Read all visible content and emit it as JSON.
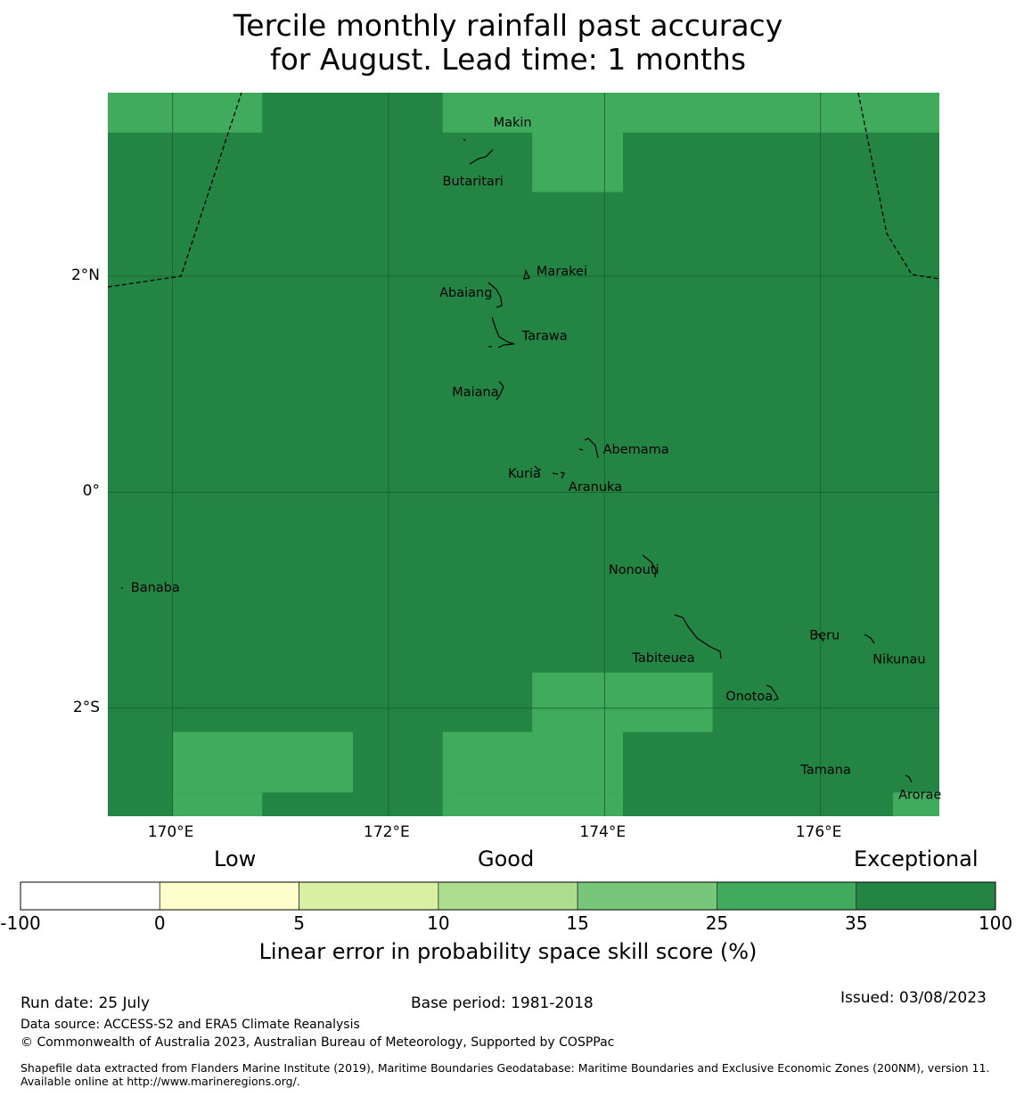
{
  "title": {
    "line1": "Tercile monthly rainfall past accuracy",
    "line2": "for August. Lead time: 1 months"
  },
  "map": {
    "lon_range": [
      169.4,
      177.1
    ],
    "lat_range": [
      -3.0,
      3.7
    ],
    "grid_cell_deg": 0.833,
    "colors": {
      "exceptional": "#238443",
      "good_high": "#41ab5d"
    },
    "lighter_cells": [
      {
        "lon": [
          169.4,
          170.83
        ],
        "lat": [
          3.33,
          3.7
        ]
      },
      {
        "lon": [
          172.5,
          177.1
        ],
        "lat": [
          3.33,
          3.7
        ]
      },
      {
        "lon": [
          173.33,
          174.17
        ],
        "lat": [
          2.78,
          3.33
        ]
      },
      {
        "lon": [
          173.33,
          175.0
        ],
        "lat": [
          -2.22,
          -1.67
        ]
      },
      {
        "lon": [
          172.5,
          174.17
        ],
        "lat": [
          -2.78,
          -2.22
        ]
      },
      {
        "lon": [
          170.0,
          171.67
        ],
        "lat": [
          -2.78,
          -2.22
        ]
      },
      {
        "lon": [
          170.0,
          170.83
        ],
        "lat": [
          -3.0,
          -2.78
        ]
      },
      {
        "lon": [
          172.5,
          174.17
        ],
        "lat": [
          -3.0,
          -2.78
        ]
      },
      {
        "lon": [
          176.67,
          177.1
        ],
        "lat": [
          -3.0,
          -2.78
        ]
      }
    ],
    "x_ticks": [
      {
        "lon": 170,
        "label": "170°E"
      },
      {
        "lon": 172,
        "label": "172°E"
      },
      {
        "lon": 174,
        "label": "174°E"
      },
      {
        "lon": 176,
        "label": "176°E"
      }
    ],
    "y_ticks": [
      {
        "lat": 2,
        "label": "2°N"
      },
      {
        "lat": 0,
        "label": "0°"
      },
      {
        "lat": -2,
        "label": "2°S"
      }
    ],
    "places": [
      {
        "name": "Makin",
        "lon": 172.97,
        "lat": 3.36
      },
      {
        "name": "Butaritari",
        "lon": 172.78,
        "lat": 3.03
      },
      {
        "name": "Marakei",
        "lon": 173.27,
        "lat": 2.0
      },
      {
        "name": "Abaiang",
        "lon": 172.9,
        "lat": 1.85
      },
      {
        "name": "Tarawa",
        "lon": 173.12,
        "lat": 1.42
      },
      {
        "name": "Maiana",
        "lon": 173.0,
        "lat": 0.93
      },
      {
        "name": "Abemama",
        "lon": 173.87,
        "lat": 0.4
      },
      {
        "name": "Kuria",
        "lon": 173.42,
        "lat": 0.22
      },
      {
        "name": "Aranuka",
        "lon": 173.6,
        "lat": 0.17
      },
      {
        "name": "Nonouti",
        "lon": 174.4,
        "lat": -0.65
      },
      {
        "name": "Banaba",
        "lon": 169.53,
        "lat": -0.88
      },
      {
        "name": "Beru",
        "lon": 175.98,
        "lat": -1.32
      },
      {
        "name": "Nikunau",
        "lon": 176.45,
        "lat": -1.38
      },
      {
        "name": "Tabiteuea",
        "lon": 174.9,
        "lat": -1.4
      },
      {
        "name": "Onotoa",
        "lon": 175.55,
        "lat": -1.82
      },
      {
        "name": "Tamana",
        "lon": 175.98,
        "lat": -2.5
      },
      {
        "name": "Arorae",
        "lon": 176.82,
        "lat": -2.65
      }
    ]
  },
  "colorbar": {
    "words": [
      "Low",
      "Good",
      "Exceptional"
    ],
    "bins": [
      {
        "from": "-100",
        "to": "0",
        "color": "#ffffff"
      },
      {
        "from": "0",
        "to": "5",
        "color": "#ffffcc"
      },
      {
        "from": "5",
        "to": "10",
        "color": "#d9f0a3"
      },
      {
        "from": "10",
        "to": "15",
        "color": "#addd8e"
      },
      {
        "from": "15",
        "to": "25",
        "color": "#78c679"
      },
      {
        "from": "25",
        "to": "35",
        "color": "#41ab5d"
      },
      {
        "from": "35",
        "to": "100",
        "color": "#238443"
      }
    ],
    "tick_labels": [
      "-100",
      "0",
      "5",
      "10",
      "15",
      "25",
      "35",
      "100"
    ],
    "title": "Linear error in probability space skill score (%)"
  },
  "footer": {
    "run_date": "Run date: 25 July",
    "base_period": "Base period: 1981-2018",
    "issued": "Issued: 03/08/2023",
    "data_source": "Data source: ACCESS-S2 and ERA5 Climate Reanalysis",
    "copyright": "© Commonwealth of Australia 2023, Australian Bureau of Meteorology, Supported by COSPPac",
    "shapefile": "Shapefile data extracted from Flanders Marine Institute (2019), Maritime Boundaries Geodatabase: Maritime Boundaries and Exclusive Economic Zones (200NM), version 11. Available online at http://www.marineregions.org/."
  }
}
